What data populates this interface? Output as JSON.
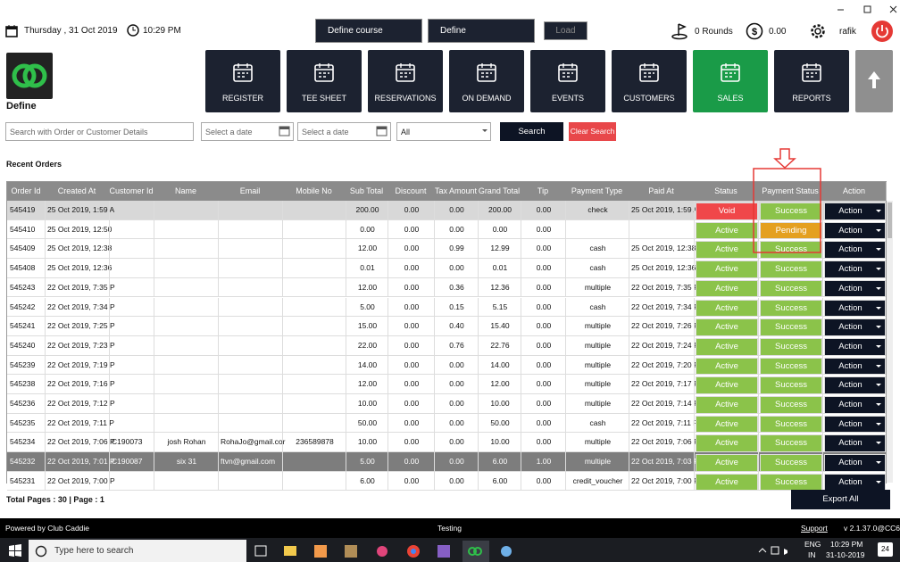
{
  "topbar": {
    "date": "Thursday , 31 Oct 2019",
    "time": "10:29 PM",
    "course_select": "Define course",
    "define_select": "Define",
    "load_button": "Load",
    "rounds": "0 Rounds",
    "balance": "0.00",
    "user": "rafik"
  },
  "logo": {
    "label": "Define"
  },
  "nav": [
    "REGISTER",
    "TEE SHEET",
    "RESERVATIONS",
    "ON DEMAND",
    "EVENTS",
    "CUSTOMERS",
    "SALES",
    "REPORTS"
  ],
  "filters": {
    "search_placeholder": "Search with Order or Customer Details",
    "date_from": "Select a date",
    "date_to": "Select a date",
    "status": "All",
    "search_button": "Search",
    "clear_button": "Clear Search"
  },
  "section_title": "Recent Orders",
  "table": {
    "columns": [
      "Order Id",
      "Created At",
      "Customer Id",
      "Name",
      "Email",
      "Mobile No",
      "Sub Total",
      "Discount",
      "Tax Amount",
      "Grand Total",
      "Tip",
      "Payment Type",
      "Paid At",
      "Status",
      "Payment Status",
      "Action"
    ],
    "rows": [
      [
        "545419",
        "25 Oct 2019, 1:59 A",
        null,
        null,
        null,
        null,
        "200.00",
        "0.00",
        "0.00",
        "200.00",
        "0.00",
        "check",
        "25 Oct 2019, 1:59 A",
        "Void",
        "Success",
        "Action"
      ],
      [
        "545410",
        "25 Oct 2019, 12:50",
        null,
        null,
        null,
        null,
        "0.00",
        "0.00",
        "0.00",
        "0.00",
        "0.00",
        null,
        null,
        "Active",
        "Pending",
        "Action"
      ],
      [
        "545409",
        "25 Oct 2019, 12:38",
        null,
        null,
        null,
        null,
        "12.00",
        "0.00",
        "0.99",
        "12.99",
        "0.00",
        "cash",
        "25 Oct 2019, 12:38",
        "Active",
        "Success",
        "Action"
      ],
      [
        "545408",
        "25 Oct 2019, 12:36",
        null,
        null,
        null,
        null,
        "0.01",
        "0.00",
        "0.00",
        "0.01",
        "0.00",
        "cash",
        "25 Oct 2019, 12:36",
        "Active",
        "Success",
        "Action"
      ],
      [
        "545243",
        "22 Oct 2019, 7:35 P",
        null,
        null,
        null,
        null,
        "12.00",
        "0.00",
        "0.36",
        "12.36",
        "0.00",
        "multiple",
        "22 Oct 2019, 7:35 P",
        "Active",
        "Success",
        "Action"
      ],
      [
        "545242",
        "22 Oct 2019, 7:34 P",
        null,
        null,
        null,
        null,
        "5.00",
        "0.00",
        "0.15",
        "5.15",
        "0.00",
        "cash",
        "22 Oct 2019, 7:34 P",
        "Active",
        "Success",
        "Action"
      ],
      [
        "545241",
        "22 Oct 2019, 7:25 P",
        null,
        null,
        null,
        null,
        "15.00",
        "0.00",
        "0.40",
        "15.40",
        "0.00",
        "multiple",
        "22 Oct 2019, 7:26 P",
        "Active",
        "Success",
        "Action"
      ],
      [
        "545240",
        "22 Oct 2019, 7:23 P",
        null,
        null,
        null,
        null,
        "22.00",
        "0.00",
        "0.76",
        "22.76",
        "0.00",
        "multiple",
        "22 Oct 2019, 7:24 P",
        "Active",
        "Success",
        "Action"
      ],
      [
        "545239",
        "22 Oct 2019, 7:19 P",
        null,
        null,
        null,
        null,
        "14.00",
        "0.00",
        "0.00",
        "14.00",
        "0.00",
        "multiple",
        "22 Oct 2019, 7:20 P",
        "Active",
        "Success",
        "Action"
      ],
      [
        "545238",
        "22 Oct 2019, 7:16 P",
        null,
        null,
        null,
        null,
        "12.00",
        "0.00",
        "0.00",
        "12.00",
        "0.00",
        "multiple",
        "22 Oct 2019, 7:17 P",
        "Active",
        "Success",
        "Action"
      ],
      [
        "545236",
        "22 Oct 2019, 7:12 P",
        null,
        null,
        null,
        null,
        "10.00",
        "0.00",
        "0.00",
        "10.00",
        "0.00",
        "multiple",
        "22 Oct 2019, 7:14 P",
        "Active",
        "Success",
        "Action"
      ],
      [
        "545235",
        "22 Oct 2019, 7:11 P",
        null,
        null,
        null,
        null,
        "50.00",
        "0.00",
        "0.00",
        "50.00",
        "0.00",
        "cash",
        "22 Oct 2019, 7:11 P",
        "Active",
        "Success",
        "Action"
      ],
      [
        "545234",
        "22 Oct 2019, 7:06 P",
        "C190073",
        "josh Rohan",
        "RohaJo@gmail.cor",
        "236589878",
        "10.00",
        "0.00",
        "0.00",
        "10.00",
        "0.00",
        "multiple",
        "22 Oct 2019, 7:06 P",
        "Active",
        "Success",
        "Action"
      ],
      [
        "545232",
        "22 Oct 2019, 7:01 P",
        "C190087",
        "six 31",
        "ftvn@gmail.com",
        null,
        "5.00",
        "0.00",
        "0.00",
        "6.00",
        "1.00",
        "multiple",
        "22 Oct 2019, 7:03 P",
        "Active",
        "Success",
        "Action"
      ],
      [
        "545231",
        "22 Oct 2019, 7:00 P",
        null,
        null,
        null,
        null,
        "6.00",
        "0.00",
        "0.00",
        "6.00",
        "0.00",
        "credit_voucher",
        "22 Oct 2019, 7:00 P",
        "Active",
        "Success",
        "Action"
      ]
    ]
  },
  "pagination": "Total Pages : 30 | Page : 1",
  "export_button": "Export All",
  "status_bar": {
    "powered_by": "Powered by Club Caddie",
    "environment": "Testing",
    "support": "Support",
    "version": "v 2.1.37.0@CC6"
  },
  "taskbar": {
    "search": "Type here to search",
    "language": "ENG",
    "region": "IN",
    "time": "10:29 PM",
    "date": "31-10-2019",
    "notifications": "24"
  }
}
